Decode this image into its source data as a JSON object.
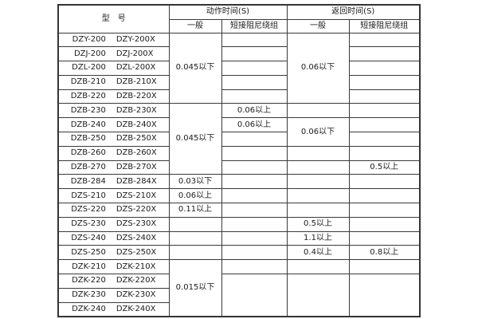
{
  "page": {
    "background": "#ffffff",
    "border_color": "#3a3a3a",
    "text_color": "#1b1b1b"
  },
  "table": {
    "header": {
      "model_label": "型　号",
      "action_group_label": "动作时间(S)",
      "return_group_label": "返回时间(S)",
      "sub_general": "一般",
      "sub_damping": "短接阻尼绕组"
    },
    "models": [
      [
        "DZY-200",
        "DZY-200X"
      ],
      [
        "DZJ-200",
        "DZJ-200X"
      ],
      [
        "DZL-200",
        "DZL-200X"
      ],
      [
        "DZB-210",
        "DZB-210X"
      ],
      [
        "DZB-220",
        "DZB-220X"
      ],
      [
        "DZB-230",
        "DZB-230X"
      ],
      [
        "DZB-240",
        "DZB-240X"
      ],
      [
        "DZB-250",
        "DZB-250X"
      ],
      [
        "DZB-260",
        "DZB-260X"
      ],
      [
        "DZB-270",
        "DZB-270X"
      ],
      [
        "DZB-284",
        "DZB-284X"
      ],
      [
        "DZS-210",
        "DZS-210X"
      ],
      [
        "DZS-220",
        "DZS-220X"
      ],
      [
        "DZS-230",
        "DZS-230X"
      ],
      [
        "DZS-240",
        "DZS-240X"
      ],
      [
        "DZS-250",
        "DZS-250X"
      ],
      [
        "DZK-210",
        "DZK-210X"
      ],
      [
        "DZK-220",
        "DZK-220X"
      ],
      [
        "DZK-230",
        "DZK-230X"
      ],
      [
        "DZK-240",
        "DZK-240X"
      ]
    ],
    "value_columns": {
      "action_general": [
        {
          "rows": 5,
          "value": "0.045以下"
        },
        {
          "rows": 5,
          "value": "0.045以下"
        },
        {
          "rows": 1,
          "value": "0.03以下"
        },
        {
          "rows": 1,
          "value": "0.06以上"
        },
        {
          "rows": 1,
          "value": "0.11以上"
        },
        {
          "rows": 1,
          "value": ""
        },
        {
          "rows": 1,
          "value": ""
        },
        {
          "rows": 1,
          "value": ""
        },
        {
          "rows": 4,
          "value": "0.015以下"
        }
      ],
      "action_damping": [
        {
          "rows": 1,
          "value": ""
        },
        {
          "rows": 1,
          "value": ""
        },
        {
          "rows": 1,
          "value": ""
        },
        {
          "rows": 1,
          "value": ""
        },
        {
          "rows": 1,
          "value": ""
        },
        {
          "rows": 1,
          "value": "0.06以上"
        },
        {
          "rows": 1,
          "value": "0.06以上"
        },
        {
          "rows": 1,
          "value": ""
        },
        {
          "rows": 1,
          "value": ""
        },
        {
          "rows": 1,
          "value": ""
        },
        {
          "rows": 1,
          "value": ""
        },
        {
          "rows": 1,
          "value": ""
        },
        {
          "rows": 1,
          "value": ""
        },
        {
          "rows": 1,
          "value": ""
        },
        {
          "rows": 1,
          "value": ""
        },
        {
          "rows": 1,
          "value": ""
        },
        {
          "rows": 1,
          "value": ""
        },
        {
          "rows": 3,
          "value": ""
        }
      ],
      "return_general": [
        {
          "rows": 5,
          "value": "0.06以下"
        },
        {
          "rows": 1,
          "value": ""
        },
        {
          "rows": 2,
          "value": "0.06以下"
        },
        {
          "rows": 1,
          "value": ""
        },
        {
          "rows": 1,
          "value": ""
        },
        {
          "rows": 1,
          "value": ""
        },
        {
          "rows": 1,
          "value": ""
        },
        {
          "rows": 1,
          "value": ""
        },
        {
          "rows": 1,
          "value": "0.5以上"
        },
        {
          "rows": 1,
          "value": "1.1以上"
        },
        {
          "rows": 1,
          "value": "0.4以上"
        },
        {
          "rows": 1,
          "value": ""
        },
        {
          "rows": 3,
          "value": ""
        }
      ],
      "return_damping": [
        {
          "rows": 1,
          "value": ""
        },
        {
          "rows": 1,
          "value": ""
        },
        {
          "rows": 1,
          "value": ""
        },
        {
          "rows": 1,
          "value": ""
        },
        {
          "rows": 1,
          "value": ""
        },
        {
          "rows": 1,
          "value": ""
        },
        {
          "rows": 1,
          "value": ""
        },
        {
          "rows": 1,
          "value": ""
        },
        {
          "rows": 1,
          "value": ""
        },
        {
          "rows": 1,
          "value": "0.5以上"
        },
        {
          "rows": 1,
          "value": ""
        },
        {
          "rows": 1,
          "value": ""
        },
        {
          "rows": 1,
          "value": ""
        },
        {
          "rows": 1,
          "value": ""
        },
        {
          "rows": 1,
          "value": ""
        },
        {
          "rows": 1,
          "value": "0.8以上"
        },
        {
          "rows": 1,
          "value": ""
        },
        {
          "rows": 3,
          "value": ""
        }
      ]
    }
  }
}
